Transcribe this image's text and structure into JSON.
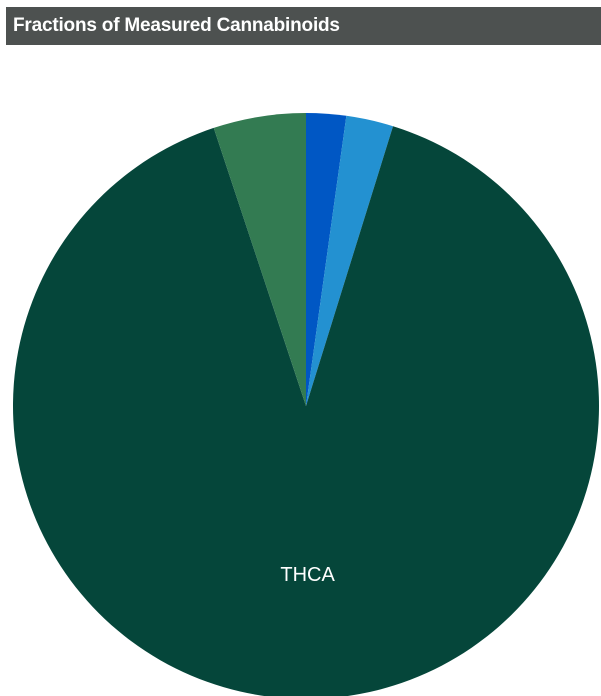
{
  "header": {
    "title": "Fractions of Measured Cannabinoids"
  },
  "chart_data": {
    "type": "pie",
    "title": "Fractions of Measured Cannabinoids",
    "slices": [
      {
        "label": "",
        "value": 2.2,
        "color": "#0057c4"
      },
      {
        "label": "",
        "value": 2.6,
        "color": "#2391d1"
      },
      {
        "label": "THCA",
        "value": 90.1,
        "color": "#05463a"
      },
      {
        "label": "",
        "value": 5.1,
        "color": "#337b52"
      }
    ]
  }
}
